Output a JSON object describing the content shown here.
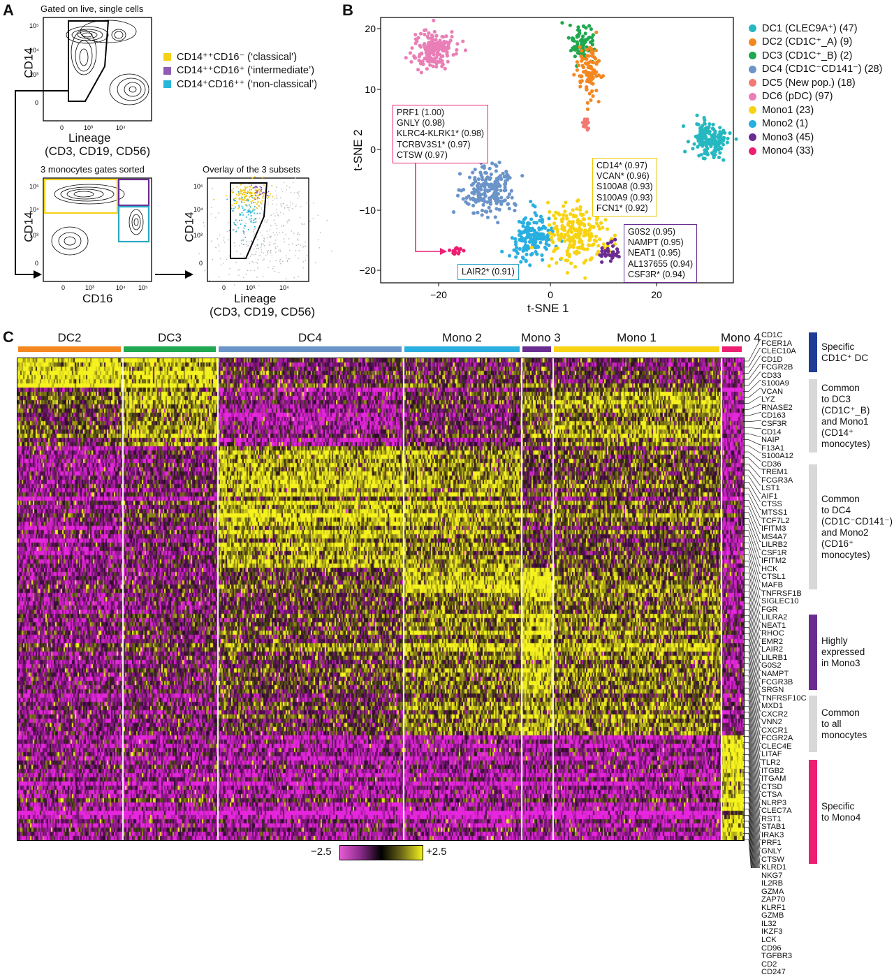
{
  "panels": {
    "a": "A",
    "b": "B",
    "c": "C"
  },
  "panelA": {
    "top_title": "Gated on live, single cells",
    "top_ylabel": "CD14",
    "top_xlabel_1": "Lineage",
    "top_xlabel_2": "(CD3, CD19, CD56)",
    "mid_title": "3 monocytes gates sorted",
    "mid_ylabel": "CD14",
    "mid_xlabel": "CD16",
    "overlay_title": "Overlay of the 3 subsets",
    "overlay_ylabel": "CD14",
    "overlay_xlabel_1": "Lineage",
    "overlay_xlabel_2": "(CD3, CD19, CD56)",
    "tick_105": "10⁵",
    "tick_104": "10⁴",
    "tick_103": "10³",
    "tick_0": "0",
    "legend": [
      {
        "label": "CD14⁺⁺CD16⁻ (‘classical’)",
        "color": "#f5d216"
      },
      {
        "label": "CD14⁺⁺CD16⁺ (‘intermediate’)",
        "color": "#8e5bb5"
      },
      {
        "label": "CD14⁺CD16⁺⁺ (‘non-classical’)",
        "color": "#28b6d9"
      }
    ],
    "gate_colors": {
      "classical": "#f5d216",
      "intermediate": "#6a2c91",
      "nonclassical": "#2aa7c6"
    }
  },
  "panelB": {
    "xlabel": "t-SNE 1",
    "ylabel": "t-SNE 2",
    "xticks": [
      "−20",
      "0",
      "20"
    ],
    "yticks": [
      "20",
      "10",
      "0",
      "−10",
      "−20"
    ],
    "legend": [
      {
        "label": "DC1 (CLEC9A⁺) (47)",
        "color": "#26b8c0"
      },
      {
        "label": "DC2 (CD1C⁺_A) (9)",
        "color": "#f4871f"
      },
      {
        "label": "DC3 (CD1C⁺_B) (2)",
        "color": "#1fa84f"
      },
      {
        "label": "DC4 (CD1C⁻CD141⁻) (28)",
        "color": "#6b94c9"
      },
      {
        "label": "DC5 (New pop.) (18)",
        "color": "#f27a73"
      },
      {
        "label": "DC6 (pDC) (97)",
        "color": "#e97fb6"
      },
      {
        "label": "Mono1 (23)",
        "color": "#f8d313"
      },
      {
        "label": "Mono2 (1)",
        "color": "#29afe0"
      },
      {
        "label": "Mono3 (45)",
        "color": "#6a2c91"
      },
      {
        "label": "Mono4 (33)",
        "color": "#ec1f73"
      }
    ],
    "boxes": {
      "mono4": {
        "color": "#ec1f73",
        "lines": [
          "PRF1 (1.00)",
          "GNLY (0.98)",
          "KLRC4-KLRK1* (0.98)",
          "TCRBV3S1* (0.97)",
          "CTSW (0.97)"
        ]
      },
      "mono1": {
        "color": "#f0c400",
        "lines": [
          "CD14* (0.97)",
          "VCAN* (0.96)",
          "S100A8 (0.93)",
          "S100A9 (0.93)",
          "FCN1* (0.92)"
        ]
      },
      "mono3": {
        "color": "#6a2c91",
        "lines": [
          "G0S2 (0.95)",
          "NAMPT (0.95)",
          "NEAT1 (0.95)",
          "AL137655 (0.94)",
          "CSF3R* (0.94)"
        ]
      },
      "mono2": {
        "color": "#29a8c9",
        "lines": [
          "LAIR2* (0.91)"
        ]
      }
    },
    "clusters": [
      {
        "name": "DC6",
        "color": "#e97fb6",
        "cx": -21,
        "cy": 16.5,
        "rx": 3.3,
        "ry": 3.0,
        "n": 170
      },
      {
        "name": "DC1",
        "color": "#26b8c0",
        "cx": 28.5,
        "cy": 1.5,
        "rx": 3.0,
        "ry": 3.0,
        "n": 150
      },
      {
        "name": "DC3",
        "color": "#1fa84f",
        "cx": 5.5,
        "cy": 17.8,
        "rx": 2.2,
        "ry": 2.5,
        "n": 80
      },
      {
        "name": "DC2",
        "color": "#f4871f",
        "cx": 7.2,
        "cy": 12.5,
        "rx": 2.0,
        "ry": 4.0,
        "n": 95
      },
      {
        "name": "DC5",
        "color": "#f27a73",
        "cx": 6.4,
        "cy": 4.3,
        "rx": 0.5,
        "ry": 0.9,
        "n": 22
      },
      {
        "name": "DC4",
        "color": "#6b94c9",
        "cx": -11.2,
        "cy": -6.5,
        "rx": 4.2,
        "ry": 3.5,
        "n": 200
      },
      {
        "name": "Mono2",
        "color": "#29afe0",
        "cx": -3.2,
        "cy": -14.5,
        "rx": 3.6,
        "ry": 3.2,
        "n": 160
      },
      {
        "name": "Mono1",
        "color": "#f8d313",
        "cx": 4.5,
        "cy": -14.0,
        "rx": 4.8,
        "ry": 4.2,
        "n": 220
      },
      {
        "name": "Mono3",
        "color": "#6a2c91",
        "cx": 10.6,
        "cy": -17.3,
        "rx": 1.4,
        "ry": 1.3,
        "n": 35
      },
      {
        "name": "Mono4",
        "color": "#ec1f73",
        "cx": -17.0,
        "cy": -16.8,
        "rx": 1.1,
        "ry": 0.5,
        "n": 14
      }
    ]
  },
  "panelC": {
    "groups": [
      {
        "label": "DC2",
        "color": "#f4871f"
      },
      {
        "label": "DC3",
        "color": "#1fa84f"
      },
      {
        "label": "DC4",
        "color": "#6b94c9"
      },
      {
        "label": "Mono 2",
        "color": "#29afe0"
      },
      {
        "label": "Mono 3",
        "color": "#6a2c91"
      },
      {
        "label": "Mono 1",
        "color": "#f8d313"
      },
      {
        "label": "Mono 4",
        "color": "#ec1f73"
      }
    ],
    "scale_min": "−2.5",
    "scale_max": "+2.5",
    "genes": [
      "CD1C",
      "FCER1A",
      "CLEC10A",
      "CD1D",
      "FCGR2B",
      "CD33",
      "S100A9",
      "VCAN",
      "LYZ",
      "RNASE2",
      "CD163",
      "CSF3R",
      "CD14",
      "NAIP",
      "F13A1",
      "S100A12",
      "CD36",
      "TREM1",
      "FCGR3A",
      "LST1",
      "AIF1",
      "CTSS",
      "MTSS1",
      "TCF7L2",
      "IFITM3",
      "MS4A7",
      "LILRB2",
      "CSF1R",
      "IFITM2",
      "HCK",
      "CTSL1",
      "MAFB",
      "TNFRSF1B",
      "SIGLEC10",
      "FGR",
      "LILRA2",
      "NEAT1",
      "RHOC",
      "EMR2",
      "LAIR2",
      "LILRB1",
      "G0S2",
      "NAMPT",
      "FCGR3B",
      "SRGN",
      "TNFRSF10C",
      "MXD1",
      "CXCR2",
      "VNN2",
      "CXCR1",
      "FCGR2A",
      "CLEC4E",
      "LITAF",
      "TLR2",
      "ITGB2",
      "ITGAM",
      "CTSD",
      "CTSA",
      "NLRP3",
      "CLEC7A",
      "RST1",
      "STAB1",
      "IRAK3",
      "PRF1",
      "GNLY",
      "CTSW",
      "KLRD1",
      "NKG7",
      "IL2RB",
      "GZMA",
      "ZAP70",
      "KLRF1",
      "GZMB",
      "IL32",
      "IKZF3",
      "LCK",
      "CD96",
      "TGFBR3",
      "CD2",
      "CD247"
    ],
    "categories": [
      {
        "label": "Specific\nCD1C⁺ DC",
        "color": "#1f3c96",
        "text_color": "#111"
      },
      {
        "label": "Common\nto DC3\n(CD1C⁺_B)\nand Mono1\n(CD14⁺\nmonocytes)",
        "color": "#d6d8da",
        "text_color": "#111"
      },
      {
        "label": "Common\nto DC4\n(CD1C⁻CD141⁻)\nand Mono2\n(CD16⁺\nmonocytes)",
        "color": "#d6d8da",
        "text_color": "#111"
      },
      {
        "label": "Highly\nexpressed\nin Mono3",
        "color": "#6a2c91",
        "text_color": "#111"
      },
      {
        "label": "Common\nto all\nmonocytes",
        "color": "#d6d8da",
        "text_color": "#111"
      },
      {
        "label": "Specific\nto Mono4",
        "color": "#ec1f73",
        "text_color": "#111"
      }
    ]
  }
}
